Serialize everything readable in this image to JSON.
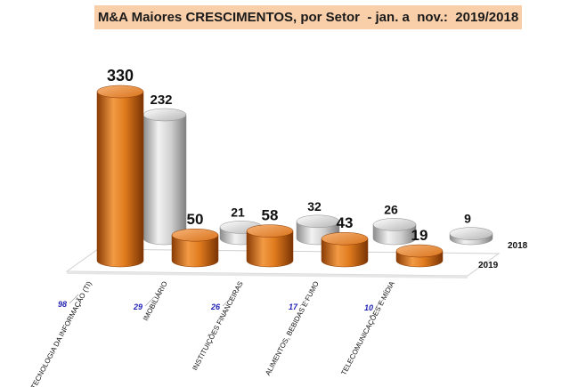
{
  "title": "M&A Maiores CRESCIMENTOS, por Setor  - jan. a  nov.:  2019/2018",
  "chart_data": {
    "type": "bar",
    "title": "M&A Maiores CRESCIMENTOS, por Setor  - jan. a  nov.:  2019/2018",
    "categories": [
      "TECNOLOGIA DA INFORMAÇÃO (TI)",
      "IMOBILIÁRIO",
      "INSTITUIÇÕES FINANCEIRAS",
      "ALIMENTOS, BEBIDAS E FUMO",
      "TELECOMUNICAÇÕES E MÍDIA"
    ],
    "category_counts": [
      "98",
      "29",
      "26",
      "17",
      "10"
    ],
    "series": [
      {
        "name": "2019",
        "values": [
          330,
          50,
          58,
          43,
          19
        ],
        "color": "#e07b1e"
      },
      {
        "name": "2018",
        "values": [
          232,
          21,
          32,
          26,
          9
        ],
        "color": "#bdbdbd"
      }
    ],
    "ylim": [
      0,
      330
    ],
    "grid": false,
    "legend": "right"
  }
}
